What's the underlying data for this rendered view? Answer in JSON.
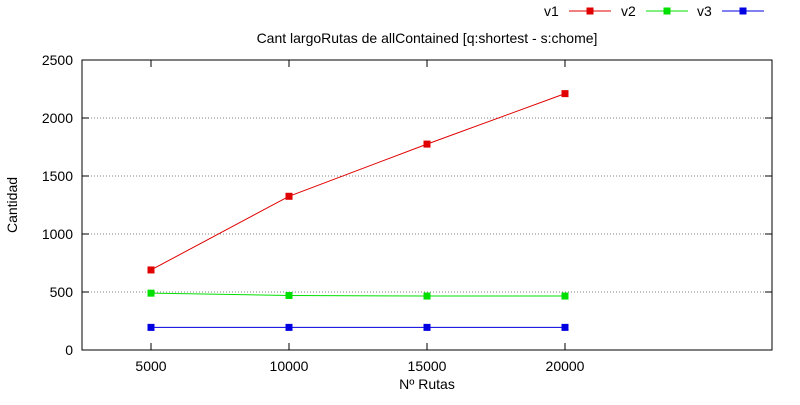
{
  "chart_data": {
    "type": "line",
    "title": "Cant largoRutas de allContained [q:shortest - s:chome]",
    "xlabel": "Nº Rutas",
    "ylabel": "Cantidad",
    "categories": [
      "5000",
      "10000",
      "15000",
      "20000"
    ],
    "x": [
      5000,
      10000,
      15000,
      20000
    ],
    "xlim": [
      2500,
      27500
    ],
    "ylim": [
      0,
      2500
    ],
    "yticks": [
      0,
      500,
      1000,
      1500,
      2000,
      2500
    ],
    "ytick_labels": [
      "0",
      "500",
      "1000",
      "1500",
      "2000",
      "2500"
    ],
    "grid": "horizontal dotted",
    "legend_position": "top-right",
    "series": [
      {
        "name": "v1",
        "color": "#e00000",
        "values": [
          690,
          1325,
          1775,
          2210
        ]
      },
      {
        "name": "v2",
        "color": "#00e000",
        "values": [
          490,
          470,
          465,
          465
        ]
      },
      {
        "name": "v3",
        "color": "#0000e0",
        "values": [
          195,
          195,
          195,
          195
        ]
      }
    ]
  }
}
